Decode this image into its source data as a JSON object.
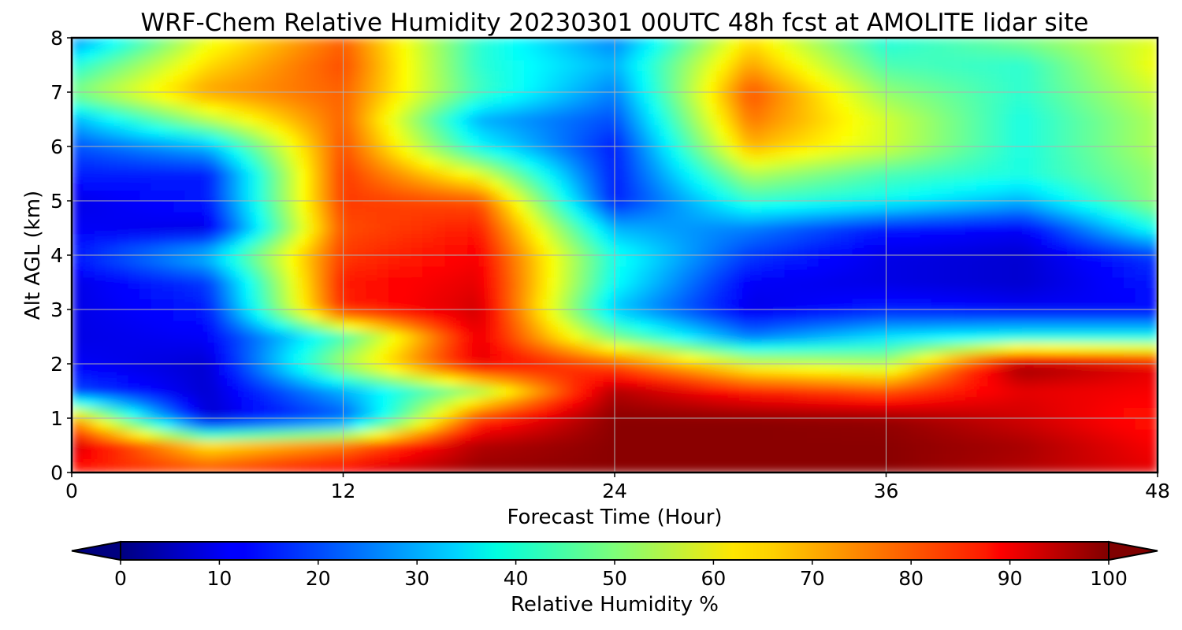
{
  "chart_data": {
    "type": "heatmap",
    "title": "WRF-Chem Relative Humidity 20230301 00UTC 48h fcst at AMOLITE lidar site",
    "xlabel": "Forecast Time (Hour)",
    "ylabel": "Alt AGL (km)",
    "xlim": [
      0,
      48
    ],
    "ylim": [
      0,
      8
    ],
    "xticks": [
      "0",
      "12",
      "24",
      "36",
      "48"
    ],
    "yticks": [
      "0",
      "1",
      "2",
      "3",
      "4",
      "5",
      "6",
      "7",
      "8"
    ],
    "grid": true,
    "colormap": "jet",
    "colorbar": {
      "label": "Relative Humidity %",
      "min": 0,
      "max": 100,
      "ticks": [
        "0",
        "10",
        "20",
        "30",
        "40",
        "50",
        "60",
        "70",
        "80",
        "90",
        "100"
      ],
      "extend": "both"
    },
    "x": [
      0,
      6,
      12,
      18,
      24,
      30,
      36,
      42,
      48
    ],
    "y": [
      0,
      0.5,
      1,
      1.5,
      2,
      2.5,
      3,
      3.5,
      4,
      4.5,
      5,
      5.5,
      6,
      6.5,
      7,
      7.5,
      8
    ],
    "z": [
      [
        85,
        82,
        90,
        98,
        99,
        99,
        99,
        95,
        90
      ],
      [
        92,
        65,
        75,
        95,
        99,
        99,
        99,
        96,
        88
      ],
      [
        72,
        8,
        20,
        82,
        99,
        99,
        98,
        92,
        85
      ],
      [
        20,
        8,
        30,
        55,
        95,
        85,
        80,
        90,
        88
      ],
      [
        12,
        8,
        55,
        90,
        80,
        60,
        55,
        98,
        90
      ],
      [
        10,
        12,
        45,
        90,
        50,
        25,
        35,
        40,
        40
      ],
      [
        10,
        15,
        84,
        92,
        32,
        10,
        15,
        12,
        12
      ],
      [
        10,
        18,
        85,
        90,
        38,
        12,
        10,
        8,
        15
      ],
      [
        15,
        32,
        82,
        88,
        40,
        18,
        10,
        8,
        18
      ],
      [
        12,
        10,
        80,
        85,
        30,
        25,
        15,
        12,
        40
      ],
      [
        10,
        15,
        82,
        80,
        15,
        42,
        38,
        30,
        52
      ],
      [
        15,
        15,
        82,
        60,
        15,
        55,
        45,
        40,
        52
      ],
      [
        20,
        30,
        80,
        38,
        15,
        70,
        58,
        40,
        55
      ],
      [
        30,
        55,
        78,
        30,
        20,
        76,
        58,
        40,
        55
      ],
      [
        50,
        72,
        78,
        44,
        25,
        80,
        52,
        42,
        58
      ],
      [
        40,
        66,
        80,
        42,
        30,
        72,
        45,
        42,
        62
      ],
      [
        25,
        60,
        78,
        42,
        25,
        65,
        40,
        50,
        60
      ]
    ]
  }
}
